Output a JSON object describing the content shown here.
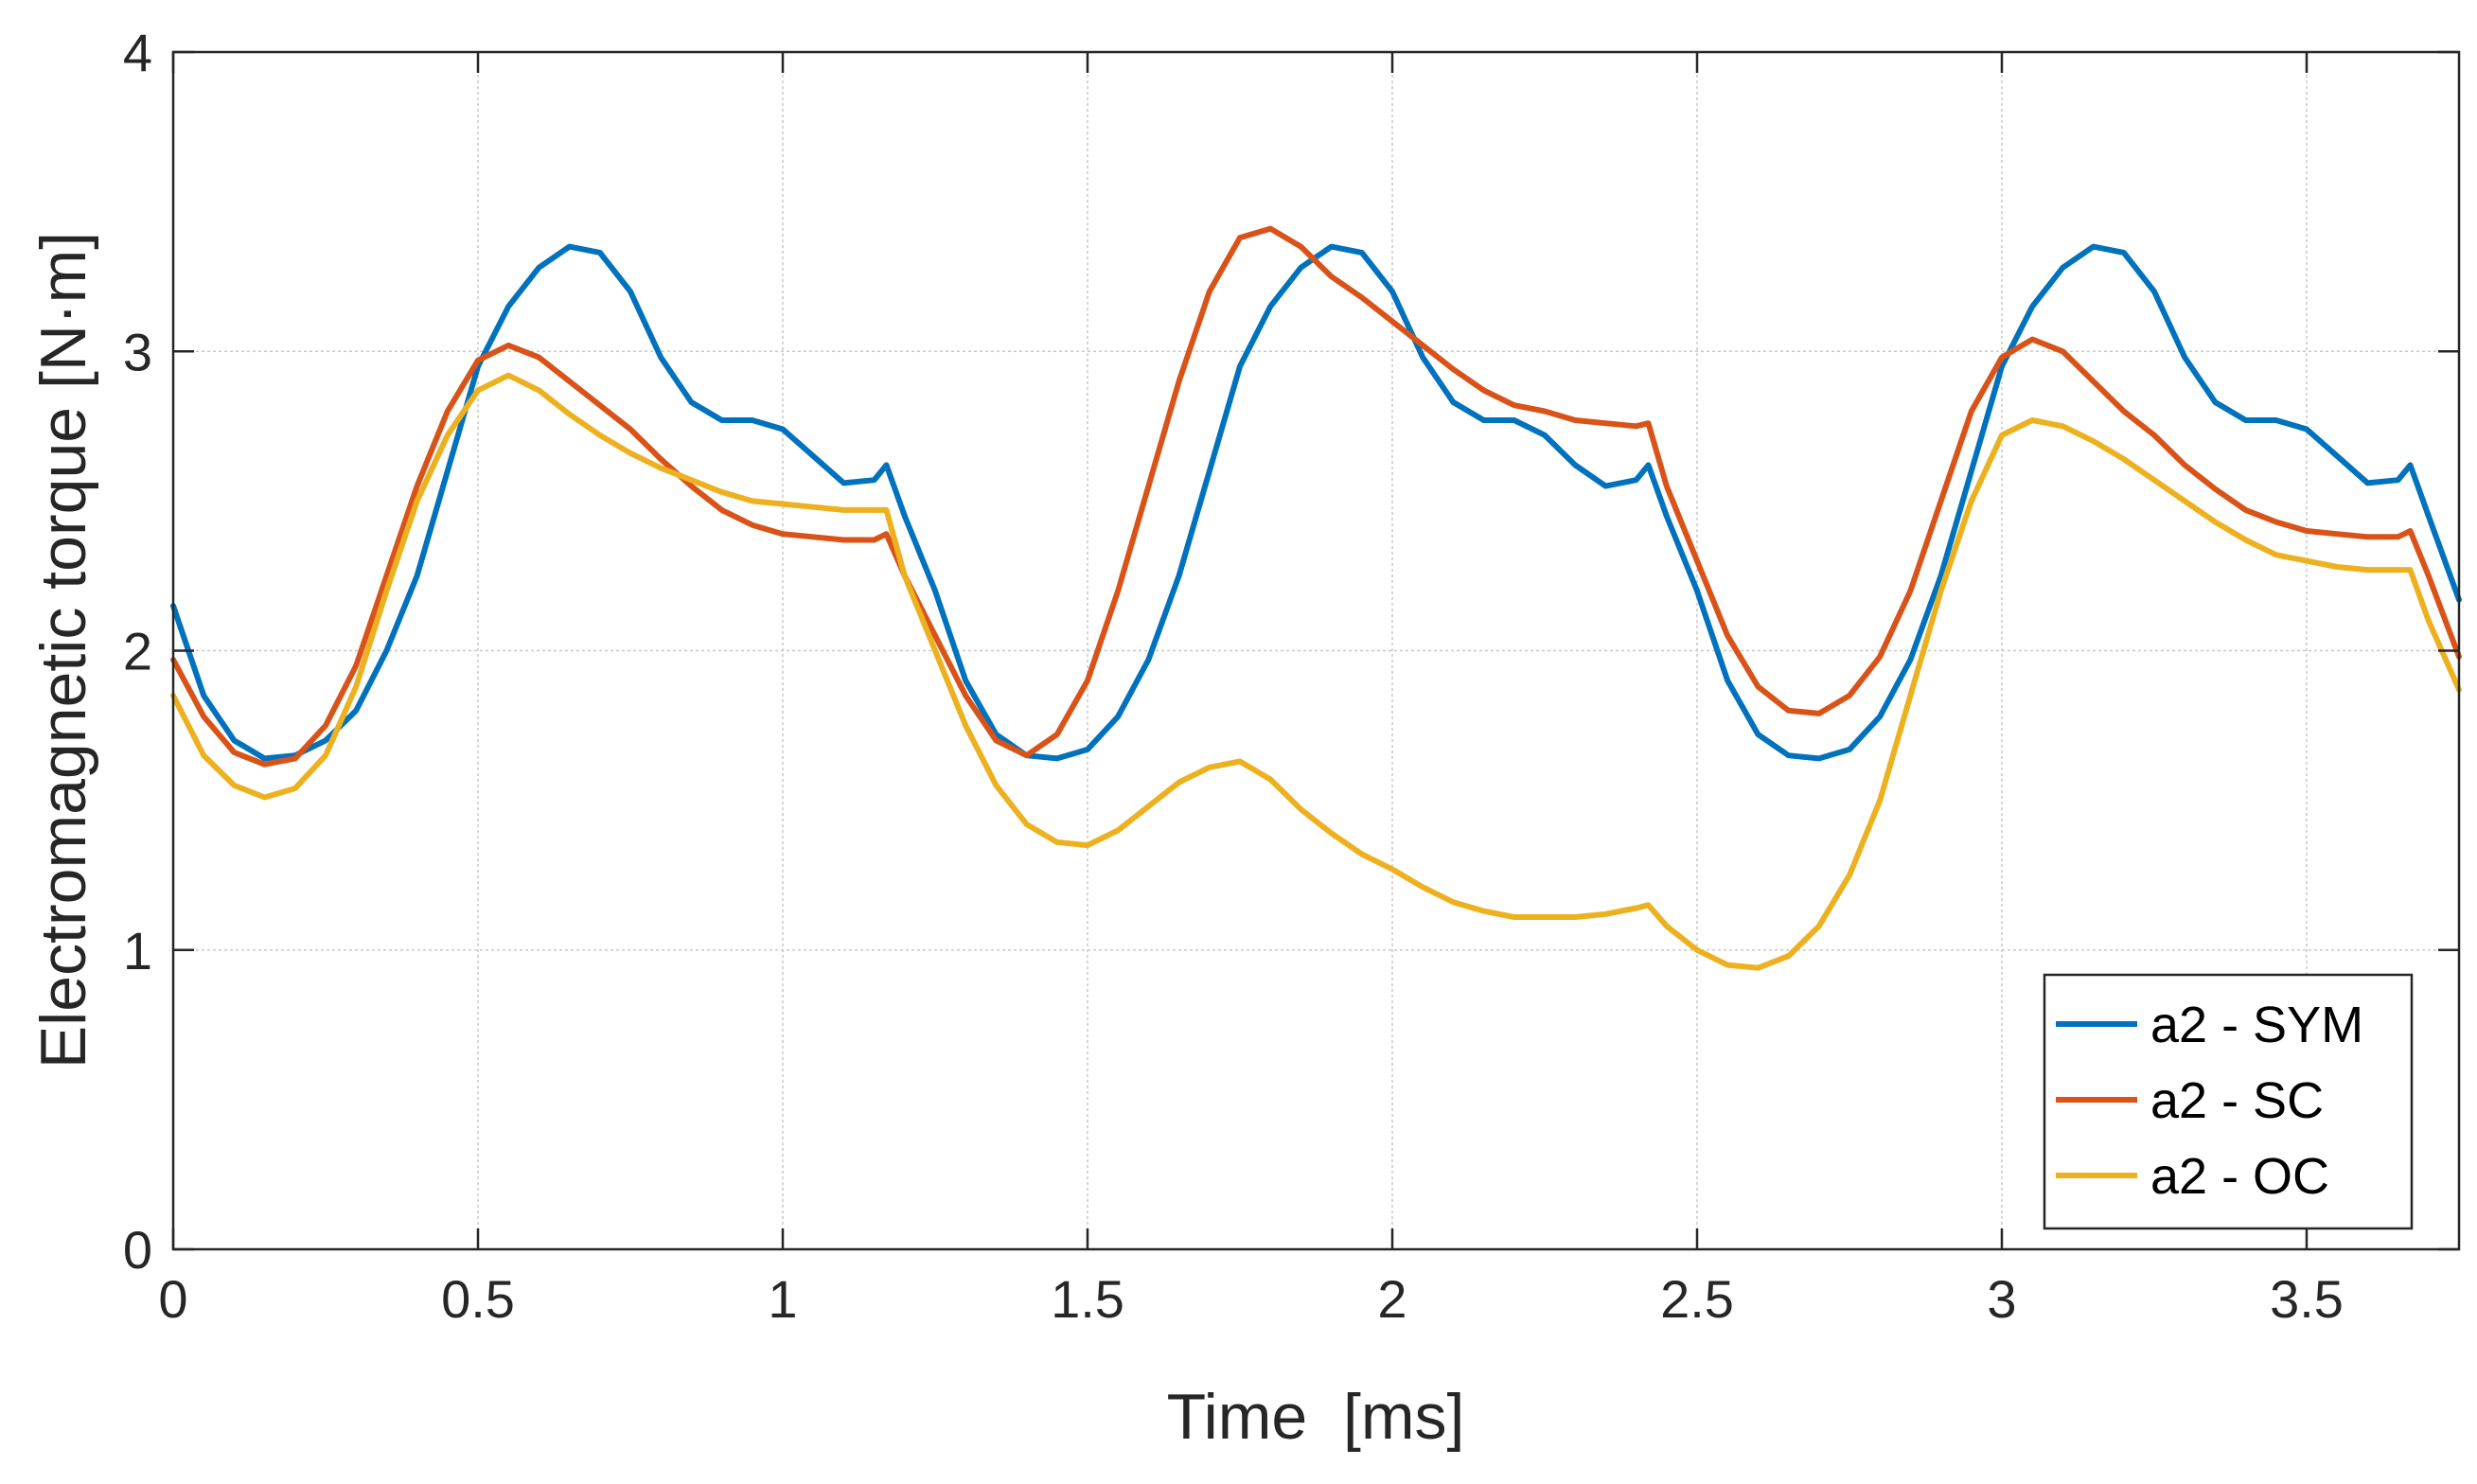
{
  "chart_data": {
    "type": "line",
    "xlabel": "Time  [ms]",
    "ylabel": "Electromagnetic torque [N·m]",
    "xlim": [
      0,
      3.75
    ],
    "ylim": [
      0,
      4
    ],
    "xticks": [
      0,
      0.5,
      1,
      1.5,
      2,
      2.5,
      3,
      3.5
    ],
    "xtick_labels": [
      "0",
      "0.5",
      "1",
      "1.5",
      "2",
      "2.5",
      "3",
      "3.5"
    ],
    "yticks": [
      0,
      1,
      2,
      3,
      4
    ],
    "ytick_labels": [
      "0",
      "1",
      "2",
      "3",
      "4"
    ],
    "grid": true,
    "legend_position": "bottom-right",
    "series": [
      {
        "name": "a2 - SYM",
        "color": "#0072BD",
        "points": [
          [
            0,
            2.15
          ],
          [
            0.05,
            1.85
          ],
          [
            0.1,
            1.7
          ],
          [
            0.15,
            1.64
          ],
          [
            0.2,
            1.65
          ],
          [
            0.25,
            1.7
          ],
          [
            0.3,
            1.8
          ],
          [
            0.35,
            2.0
          ],
          [
            0.4,
            2.25
          ],
          [
            0.45,
            2.6
          ],
          [
            0.5,
            2.95
          ],
          [
            0.55,
            3.15
          ],
          [
            0.6,
            3.28
          ],
          [
            0.65,
            3.35
          ],
          [
            0.7,
            3.33
          ],
          [
            0.75,
            3.2
          ],
          [
            0.8,
            2.98
          ],
          [
            0.85,
            2.83
          ],
          [
            0.9,
            2.77
          ],
          [
            0.95,
            2.77
          ],
          [
            1.0,
            2.74
          ],
          [
            1.05,
            2.65
          ],
          [
            1.1,
            2.56
          ],
          [
            1.15,
            2.57
          ],
          [
            1.17,
            2.62
          ],
          [
            1.2,
            2.45
          ],
          [
            1.25,
            2.2
          ],
          [
            1.3,
            1.9
          ],
          [
            1.35,
            1.72
          ],
          [
            1.4,
            1.65
          ],
          [
            1.45,
            1.64
          ],
          [
            1.5,
            1.67
          ],
          [
            1.55,
            1.78
          ],
          [
            1.6,
            1.97
          ],
          [
            1.65,
            2.25
          ],
          [
            1.7,
            2.6
          ],
          [
            1.75,
            2.95
          ],
          [
            1.8,
            3.15
          ],
          [
            1.85,
            3.28
          ],
          [
            1.9,
            3.35
          ],
          [
            1.95,
            3.33
          ],
          [
            2.0,
            3.2
          ],
          [
            2.05,
            2.98
          ],
          [
            2.1,
            2.83
          ],
          [
            2.15,
            2.77
          ],
          [
            2.2,
            2.77
          ],
          [
            2.25,
            2.72
          ],
          [
            2.3,
            2.62
          ],
          [
            2.35,
            2.55
          ],
          [
            2.4,
            2.57
          ],
          [
            2.42,
            2.62
          ],
          [
            2.45,
            2.45
          ],
          [
            2.5,
            2.2
          ],
          [
            2.55,
            1.9
          ],
          [
            2.6,
            1.72
          ],
          [
            2.65,
            1.65
          ],
          [
            2.7,
            1.64
          ],
          [
            2.75,
            1.67
          ],
          [
            2.8,
            1.78
          ],
          [
            2.85,
            1.97
          ],
          [
            2.9,
            2.25
          ],
          [
            2.95,
            2.6
          ],
          [
            3.0,
            2.95
          ],
          [
            3.05,
            3.15
          ],
          [
            3.1,
            3.28
          ],
          [
            3.15,
            3.35
          ],
          [
            3.2,
            3.33
          ],
          [
            3.25,
            3.2
          ],
          [
            3.3,
            2.98
          ],
          [
            3.35,
            2.83
          ],
          [
            3.4,
            2.77
          ],
          [
            3.45,
            2.77
          ],
          [
            3.5,
            2.74
          ],
          [
            3.55,
            2.65
          ],
          [
            3.6,
            2.56
          ],
          [
            3.65,
            2.57
          ],
          [
            3.67,
            2.62
          ],
          [
            3.7,
            2.45
          ],
          [
            3.75,
            2.17
          ]
        ]
      },
      {
        "name": "a2 - SC",
        "color": "#D95319",
        "points": [
          [
            0,
            1.97
          ],
          [
            0.05,
            1.78
          ],
          [
            0.1,
            1.66
          ],
          [
            0.15,
            1.62
          ],
          [
            0.2,
            1.64
          ],
          [
            0.25,
            1.75
          ],
          [
            0.3,
            1.95
          ],
          [
            0.35,
            2.25
          ],
          [
            0.4,
            2.55
          ],
          [
            0.45,
            2.8
          ],
          [
            0.5,
            2.97
          ],
          [
            0.55,
            3.02
          ],
          [
            0.6,
            2.98
          ],
          [
            0.65,
            2.9
          ],
          [
            0.7,
            2.82
          ],
          [
            0.75,
            2.74
          ],
          [
            0.8,
            2.64
          ],
          [
            0.85,
            2.55
          ],
          [
            0.9,
            2.47
          ],
          [
            0.95,
            2.42
          ],
          [
            1.0,
            2.39
          ],
          [
            1.05,
            2.38
          ],
          [
            1.1,
            2.37
          ],
          [
            1.15,
            2.37
          ],
          [
            1.17,
            2.39
          ],
          [
            1.2,
            2.25
          ],
          [
            1.25,
            2.05
          ],
          [
            1.3,
            1.85
          ],
          [
            1.35,
            1.7
          ],
          [
            1.4,
            1.65
          ],
          [
            1.45,
            1.72
          ],
          [
            1.5,
            1.9
          ],
          [
            1.55,
            2.2
          ],
          [
            1.6,
            2.55
          ],
          [
            1.65,
            2.9
          ],
          [
            1.7,
            3.2
          ],
          [
            1.75,
            3.38
          ],
          [
            1.8,
            3.41
          ],
          [
            1.85,
            3.35
          ],
          [
            1.9,
            3.25
          ],
          [
            1.95,
            3.18
          ],
          [
            2.0,
            3.1
          ],
          [
            2.05,
            3.02
          ],
          [
            2.1,
            2.94
          ],
          [
            2.15,
            2.87
          ],
          [
            2.2,
            2.82
          ],
          [
            2.25,
            2.8
          ],
          [
            2.3,
            2.77
          ],
          [
            2.35,
            2.76
          ],
          [
            2.4,
            2.75
          ],
          [
            2.42,
            2.76
          ],
          [
            2.45,
            2.55
          ],
          [
            2.5,
            2.3
          ],
          [
            2.55,
            2.05
          ],
          [
            2.6,
            1.88
          ],
          [
            2.65,
            1.8
          ],
          [
            2.7,
            1.79
          ],
          [
            2.75,
            1.85
          ],
          [
            2.8,
            1.98
          ],
          [
            2.85,
            2.2
          ],
          [
            2.9,
            2.5
          ],
          [
            2.95,
            2.8
          ],
          [
            3.0,
            2.98
          ],
          [
            3.05,
            3.04
          ],
          [
            3.1,
            3.0
          ],
          [
            3.15,
            2.9
          ],
          [
            3.2,
            2.8
          ],
          [
            3.25,
            2.72
          ],
          [
            3.3,
            2.62
          ],
          [
            3.35,
            2.54
          ],
          [
            3.4,
            2.47
          ],
          [
            3.45,
            2.43
          ],
          [
            3.5,
            2.4
          ],
          [
            3.55,
            2.39
          ],
          [
            3.6,
            2.38
          ],
          [
            3.65,
            2.38
          ],
          [
            3.67,
            2.4
          ],
          [
            3.7,
            2.25
          ],
          [
            3.75,
            1.98
          ]
        ]
      },
      {
        "name": "a2 - OC",
        "color": "#EDB120",
        "points": [
          [
            0,
            1.85
          ],
          [
            0.05,
            1.65
          ],
          [
            0.1,
            1.55
          ],
          [
            0.15,
            1.51
          ],
          [
            0.2,
            1.54
          ],
          [
            0.25,
            1.65
          ],
          [
            0.3,
            1.88
          ],
          [
            0.35,
            2.2
          ],
          [
            0.4,
            2.5
          ],
          [
            0.45,
            2.72
          ],
          [
            0.5,
            2.87
          ],
          [
            0.55,
            2.92
          ],
          [
            0.6,
            2.87
          ],
          [
            0.65,
            2.79
          ],
          [
            0.7,
            2.72
          ],
          [
            0.75,
            2.66
          ],
          [
            0.8,
            2.61
          ],
          [
            0.85,
            2.57
          ],
          [
            0.9,
            2.53
          ],
          [
            0.95,
            2.5
          ],
          [
            1.0,
            2.49
          ],
          [
            1.05,
            2.48
          ],
          [
            1.1,
            2.47
          ],
          [
            1.15,
            2.47
          ],
          [
            1.17,
            2.47
          ],
          [
            1.2,
            2.25
          ],
          [
            1.25,
            2.0
          ],
          [
            1.3,
            1.75
          ],
          [
            1.35,
            1.55
          ],
          [
            1.4,
            1.42
          ],
          [
            1.45,
            1.36
          ],
          [
            1.5,
            1.35
          ],
          [
            1.55,
            1.4
          ],
          [
            1.6,
            1.48
          ],
          [
            1.65,
            1.56
          ],
          [
            1.7,
            1.61
          ],
          [
            1.75,
            1.63
          ],
          [
            1.8,
            1.57
          ],
          [
            1.85,
            1.47
          ],
          [
            1.9,
            1.39
          ],
          [
            1.95,
            1.32
          ],
          [
            2.0,
            1.27
          ],
          [
            2.05,
            1.21
          ],
          [
            2.1,
            1.16
          ],
          [
            2.15,
            1.13
          ],
          [
            2.2,
            1.11
          ],
          [
            2.25,
            1.11
          ],
          [
            2.3,
            1.11
          ],
          [
            2.35,
            1.12
          ],
          [
            2.4,
            1.14
          ],
          [
            2.42,
            1.15
          ],
          [
            2.45,
            1.08
          ],
          [
            2.5,
            1.0
          ],
          [
            2.55,
            0.95
          ],
          [
            2.6,
            0.94
          ],
          [
            2.65,
            0.98
          ],
          [
            2.7,
            1.08
          ],
          [
            2.75,
            1.25
          ],
          [
            2.8,
            1.5
          ],
          [
            2.85,
            1.85
          ],
          [
            2.9,
            2.2
          ],
          [
            2.95,
            2.5
          ],
          [
            3.0,
            2.72
          ],
          [
            3.05,
            2.77
          ],
          [
            3.1,
            2.75
          ],
          [
            3.15,
            2.7
          ],
          [
            3.2,
            2.64
          ],
          [
            3.25,
            2.57
          ],
          [
            3.3,
            2.5
          ],
          [
            3.35,
            2.43
          ],
          [
            3.4,
            2.37
          ],
          [
            3.45,
            2.32
          ],
          [
            3.5,
            2.3
          ],
          [
            3.55,
            2.28
          ],
          [
            3.6,
            2.27
          ],
          [
            3.65,
            2.27
          ],
          [
            3.67,
            2.27
          ],
          [
            3.7,
            2.1
          ],
          [
            3.75,
            1.87
          ]
        ]
      }
    ]
  }
}
